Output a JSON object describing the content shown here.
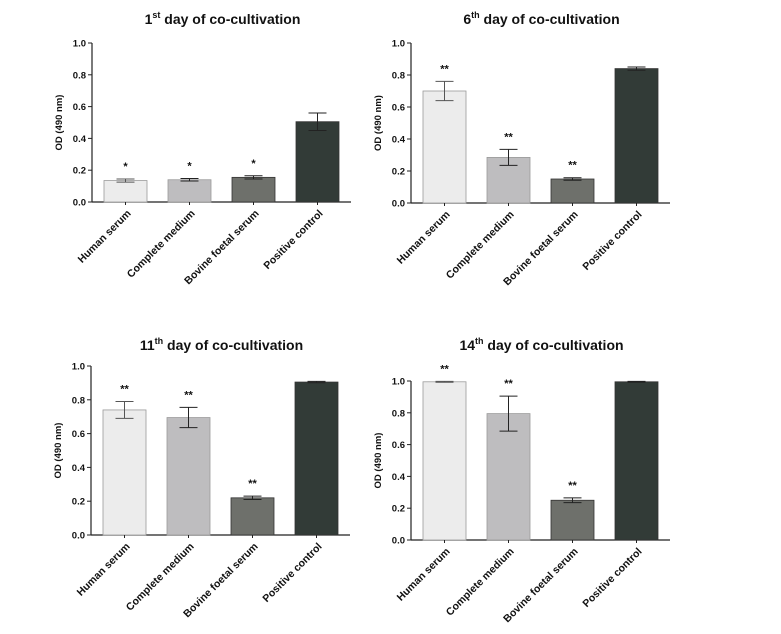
{
  "chart_data": [
    {
      "type": "bar",
      "title": {
        "num": "1",
        "sup": "st",
        "rest": " day of co-cultivation"
      },
      "ylabel": "OD (490 nm)",
      "ylim": [
        0,
        1.0
      ],
      "yticks": [
        "0.0",
        "0.2",
        "0.4",
        "0.6",
        "0.8",
        "1.0"
      ],
      "categories": [
        "Human serum",
        "Complete medium",
        "Bovine foetal serum",
        "Positive control"
      ],
      "values": [
        0.135,
        0.14,
        0.155,
        0.505
      ],
      "errors": [
        0.01,
        0.008,
        0.01,
        0.055
      ],
      "annotations": [
        "*",
        "*",
        "*",
        ""
      ]
    },
    {
      "type": "bar",
      "title": {
        "num": "6",
        "sup": "th",
        "rest": " day of co-cultivation"
      },
      "ylabel": "OD (490 nm)",
      "ylim": [
        0,
        1.0
      ],
      "yticks": [
        "0.0",
        "0.2",
        "0.4",
        "0.6",
        "0.8",
        "1.0"
      ],
      "categories": [
        "Human serum",
        "Complete medium",
        "Bovine foetal serum",
        "Positive control"
      ],
      "values": [
        0.7,
        0.285,
        0.15,
        0.84
      ],
      "errors": [
        0.06,
        0.05,
        0.008,
        0.01
      ],
      "annotations": [
        "**",
        "**",
        "**",
        ""
      ]
    },
    {
      "type": "bar",
      "title": {
        "num": "11",
        "sup": "th",
        "rest": " day of co-cultivation"
      },
      "ylabel": "OD (490 nm)",
      "ylim": [
        0,
        1.0
      ],
      "yticks": [
        "0.0",
        "0.2",
        "0.4",
        "0.6",
        "0.8",
        "1.0"
      ],
      "categories": [
        "Human serum",
        "Complete medium",
        "Bovine foetal serum",
        "Positive control"
      ],
      "values": [
        0.74,
        0.695,
        0.22,
        0.905
      ],
      "errors": [
        0.05,
        0.06,
        0.01,
        0.004
      ],
      "annotations": [
        "**",
        "**",
        "**",
        ""
      ]
    },
    {
      "type": "bar",
      "title": {
        "num": "14",
        "sup": "th",
        "rest": " day of co-cultivation"
      },
      "ylabel": "OD (490 nm)",
      "ylim": [
        0,
        1.0
      ],
      "yticks": [
        "0.0",
        "0.2",
        "0.4",
        "0.6",
        "0.8",
        "1.0"
      ],
      "categories": [
        "Human serum",
        "Complete medium",
        "Bovine foetal serum",
        "Positive control"
      ],
      "values": [
        0.995,
        0.795,
        0.25,
        0.995
      ],
      "errors": [
        0.003,
        0.11,
        0.015,
        0.003
      ],
      "annotations": [
        "**",
        "**",
        "**",
        ""
      ]
    }
  ],
  "colors": {
    "bars": [
      "#ececec",
      "#bebdbf",
      "#6e706b",
      "#323b37"
    ],
    "axis": "#222222"
  }
}
